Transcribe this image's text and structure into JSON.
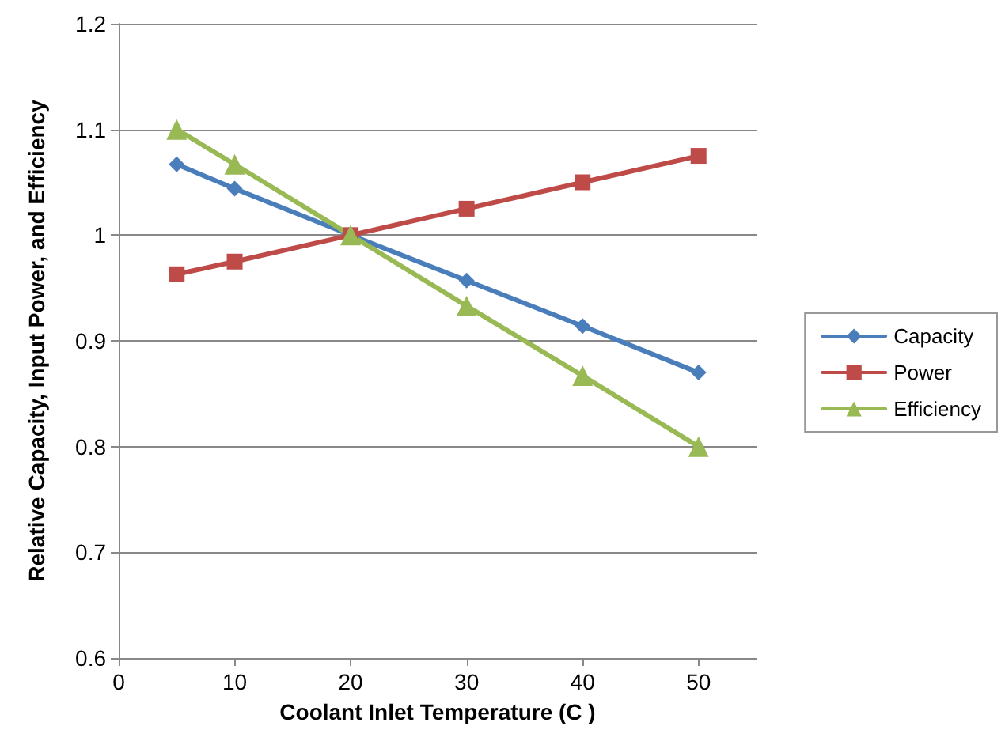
{
  "chart_data": {
    "type": "line",
    "xlabel": "Coolant Inlet Temperature (C )",
    "ylabel": "Relative Capacity, Input Power, and Efficiency",
    "x": [
      5,
      10,
      20,
      30,
      40,
      50
    ],
    "series": [
      {
        "name": "Capacity",
        "color": "#4a7ebb",
        "marker": "diamond",
        "values": [
          1.067,
          1.044,
          1.0,
          0.957,
          0.914,
          0.87
        ]
      },
      {
        "name": "Power",
        "color": "#be4b48",
        "marker": "square",
        "values": [
          0.963,
          0.975,
          1.0,
          1.025,
          1.05,
          1.075
        ]
      },
      {
        "name": "Efficiency",
        "color": "#98b954",
        "marker": "triangle",
        "values": [
          1.1,
          1.067,
          1.0,
          0.933,
          0.867,
          0.8
        ]
      }
    ],
    "xlim": [
      0,
      55
    ],
    "xticks": [
      0,
      10,
      20,
      30,
      40,
      50
    ],
    "ylim": [
      0.6,
      1.2
    ],
    "yticks": [
      0.6,
      0.7,
      0.8,
      0.9,
      1,
      1.1,
      1.2
    ],
    "grid": "y",
    "legend": "right",
    "line_style": "solid"
  }
}
